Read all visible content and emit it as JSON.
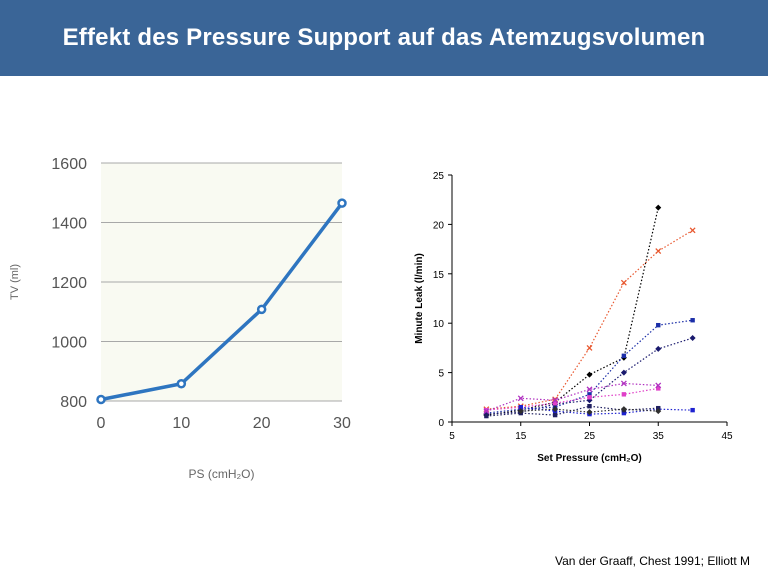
{
  "slide": {
    "title": "Effekt des Pressure Support auf das Atemzugsvolumen",
    "citation": "Van der Graaff, Chest 1991; Elliott M"
  },
  "chart_data": [
    {
      "type": "line",
      "x": [
        0,
        10,
        20,
        30
      ],
      "series": [
        {
          "values": [
            805,
            858,
            1108,
            1465
          ],
          "color": "#2e75c0"
        }
      ],
      "xlabel": "PS (cmH₂O)",
      "ylabel": "TV (ml)",
      "xlim": [
        0,
        30
      ],
      "ylim": [
        800,
        1600
      ],
      "xticks": [
        0,
        10,
        20,
        30
      ],
      "yticks": [
        800,
        1000,
        1200,
        1400,
        1600
      ],
      "grid": true,
      "plot_background": "#f9faf2"
    },
    {
      "type": "scatter",
      "xlabel": "Set Pressure (cmH₂O)",
      "ylabel": "Minute Leak (l/min)",
      "xlim": [
        5,
        45
      ],
      "ylim": [
        0,
        25
      ],
      "xticks": [
        5,
        15,
        25,
        35,
        45
      ],
      "yticks": [
        0,
        5,
        10,
        15,
        20,
        25
      ],
      "grid": false,
      "series": [
        {
          "marker": "diamond",
          "color": "#000000",
          "points": [
            [
              10,
              0.7
            ],
            [
              15,
              1.2
            ],
            [
              20,
              2
            ],
            [
              25,
              4.8
            ],
            [
              30,
              6.5
            ],
            [
              35,
              21.7
            ]
          ]
        },
        {
          "marker": "x",
          "color": "#e8582f",
          "points": [
            [
              10,
              1.3
            ],
            [
              15,
              1.6
            ],
            [
              20,
              2.3
            ],
            [
              25,
              7.5
            ],
            [
              30,
              14.1
            ],
            [
              35,
              17.3
            ],
            [
              40,
              19.4
            ]
          ]
        },
        {
          "marker": "square",
          "color": "#1b2ea8",
          "points": [
            [
              10,
              0.9
            ],
            [
              15,
              1.3
            ],
            [
              20,
              1.5
            ],
            [
              25,
              2.8
            ],
            [
              30,
              6.7
            ],
            [
              35,
              9.8
            ],
            [
              40,
              10.3
            ]
          ]
        },
        {
          "marker": "diamond",
          "color": "#1a1a6e",
          "points": [
            [
              10,
              0.8
            ],
            [
              15,
              1
            ],
            [
              20,
              1.8
            ],
            [
              25,
              2.2
            ],
            [
              30,
              5
            ],
            [
              35,
              7.4
            ],
            [
              40,
              8.5
            ]
          ]
        },
        {
          "marker": "square",
          "color": "#e040c8",
          "points": [
            [
              10,
              1.2
            ],
            [
              15,
              1.5
            ],
            [
              20,
              1.9
            ],
            [
              25,
              2.5
            ],
            [
              30,
              2.8
            ],
            [
              35,
              3.4
            ]
          ]
        },
        {
          "marker": "x",
          "color": "#b030c0",
          "points": [
            [
              10,
              1.1
            ],
            [
              15,
              2.4
            ],
            [
              20,
              2.2
            ],
            [
              25,
              3.3
            ],
            [
              30,
              3.9
            ],
            [
              35,
              3.7
            ]
          ]
        },
        {
          "marker": "square",
          "color": "#1e22d0",
          "points": [
            [
              15,
              1.5
            ],
            [
              20,
              1.1
            ],
            [
              25,
              0.8
            ],
            [
              30,
              0.9
            ],
            [
              35,
              1.3
            ],
            [
              40,
              1.2
            ]
          ]
        },
        {
          "marker": "square",
          "color": "#202060",
          "points": [
            [
              10,
              0.6
            ],
            [
              15,
              0.9
            ],
            [
              20,
              0.7
            ],
            [
              25,
              1.6
            ],
            [
              30,
              1.2
            ],
            [
              35,
              1.4
            ]
          ]
        },
        {
          "marker": "diamond",
          "color": "#303030",
          "points": [
            [
              15,
              1.1
            ],
            [
              20,
              1.3
            ],
            [
              25,
              1
            ],
            [
              30,
              1.3
            ],
            [
              35,
              1.1
            ]
          ]
        }
      ]
    }
  ]
}
